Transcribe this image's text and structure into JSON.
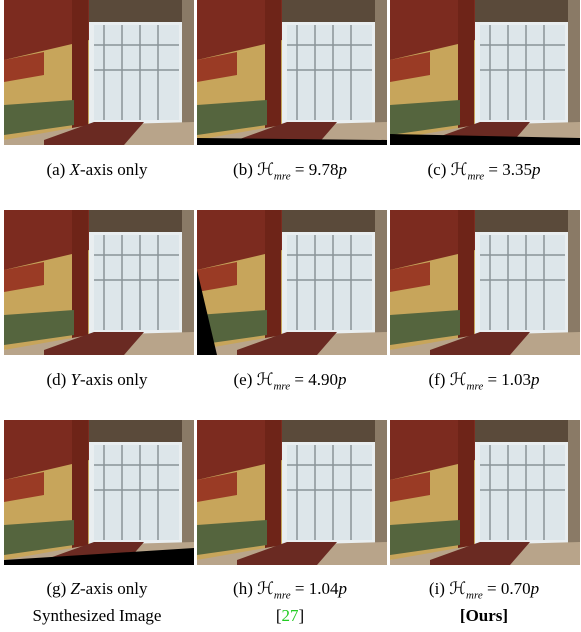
{
  "captions": [
    {
      "label": "(a)",
      "axis": "X",
      "rest": "-axis only"
    },
    {
      "label": "(b)",
      "symbol": "ℋ",
      "sub": "mre",
      "eq": "= 9.78",
      "unit": "p"
    },
    {
      "label": "(c)",
      "symbol": "ℋ",
      "sub": "mre",
      "eq": "= 3.35",
      "unit": "p"
    },
    {
      "label": "(d)",
      "axis": "Y",
      "rest": "-axis only"
    },
    {
      "label": "(e)",
      "symbol": "ℋ",
      "sub": "mre",
      "eq": "= 4.90",
      "unit": "p"
    },
    {
      "label": "(f)",
      "symbol": "ℋ",
      "sub": "mre",
      "eq": "= 1.03",
      "unit": "p"
    },
    {
      "label": "(g)",
      "axis": "Z",
      "rest": "-axis only"
    },
    {
      "label": "(h)",
      "symbol": "ℋ",
      "sub": "mre",
      "eq": "= 1.04",
      "unit": "p"
    },
    {
      "label": "(i)",
      "symbol": "ℋ",
      "sub": "mre",
      "eq": "= 0.70",
      "unit": "p"
    }
  ],
  "footer": {
    "left": "Synthesized Image",
    "middle": {
      "open": "[",
      "ref": "27",
      "close": "]"
    },
    "right": "[Ours]"
  }
}
